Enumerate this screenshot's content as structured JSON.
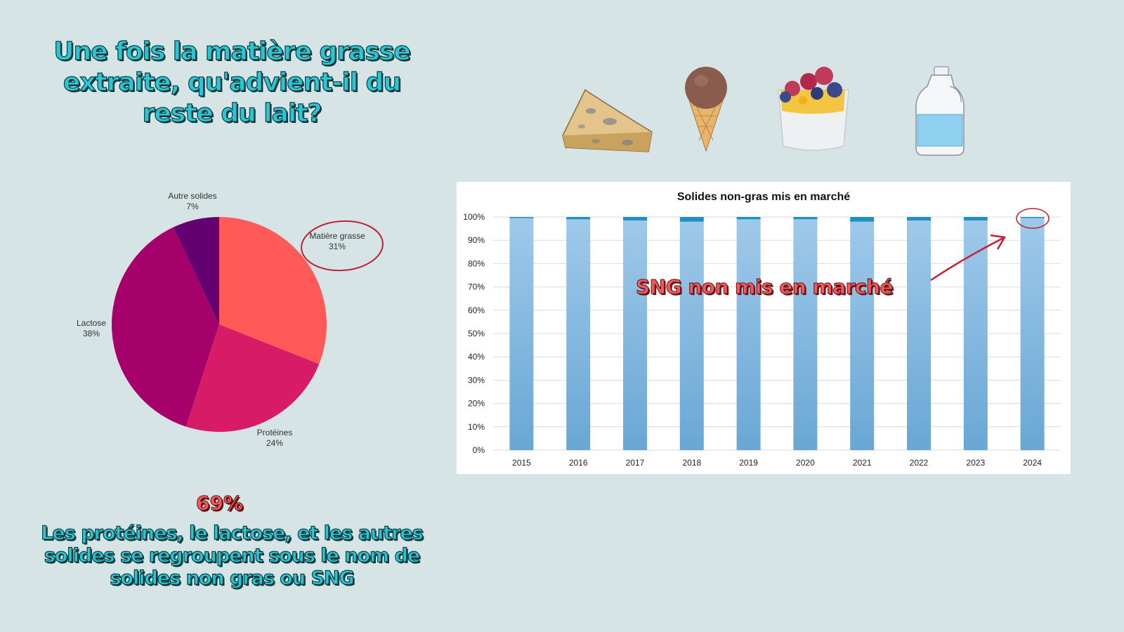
{
  "title": "Une fois la matière grasse extraite, qu'advient-il du reste du lait?",
  "highlight_percent": "69%",
  "bottom_text": "Les protéines, le lactose, et les autres solides se regroupent sous le nom de solides non gras ou SNG",
  "annotation_text": "SNG non mis en marché",
  "icons": [
    "cheese-wedge-icon",
    "ice-cream-cone-icon",
    "fruit-yogurt-cup-icon",
    "milk-jug-icon"
  ],
  "colors": {
    "background": "#d6e4e6",
    "title_fill": "#2ac6d3",
    "accent_red": "#f4595d",
    "circle_red": "#c21f32",
    "bar_light": "#92c0e4",
    "bar_dark": "#1f8fc4"
  },
  "chart_data": [
    {
      "type": "pie",
      "slices": [
        {
          "label": "Matière grasse",
          "value": 31,
          "value_label": "31%",
          "color": "#ff5a58"
        },
        {
          "label": "Protéines",
          "value": 24,
          "value_label": "24%",
          "color": "#d81b66"
        },
        {
          "label": "Lactose",
          "value": 38,
          "value_label": "38%",
          "color": "#a6006b"
        },
        {
          "label": "Autre solides",
          "value": 7,
          "value_label": "7%",
          "color": "#650070"
        }
      ],
      "highlighted": "Matière grasse"
    },
    {
      "type": "bar",
      "stacked": true,
      "title": "Solides non-gras  mis en marché",
      "categories": [
        "2015",
        "2016",
        "2017",
        "2018",
        "2019",
        "2020",
        "2021",
        "2022",
        "2023",
        "2024"
      ],
      "series": [
        {
          "values": [
            99.5,
            99.0,
            98.5,
            98.0,
            99.0,
            99.0,
            98.0,
            98.5,
            98.5,
            99.5
          ],
          "color": "#92c0e4"
        },
        {
          "values": [
            0.5,
            1.0,
            1.5,
            2.0,
            1.0,
            1.0,
            2.0,
            1.5,
            1.5,
            0.5
          ],
          "color": "#1f8fc4"
        }
      ],
      "yticks": [
        "0%",
        "10%",
        "20%",
        "30%",
        "40%",
        "50%",
        "60%",
        "70%",
        "80%",
        "90%",
        "100%"
      ],
      "ylim": [
        0,
        100
      ],
      "grid": true,
      "highlighted_category": "2024"
    }
  ]
}
